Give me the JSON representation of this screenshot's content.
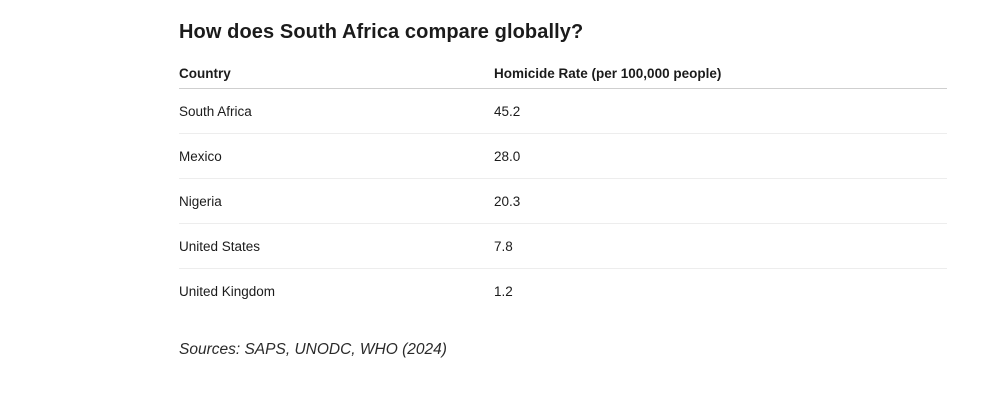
{
  "heading": "How does South Africa compare globally?",
  "table": {
    "headers": {
      "country": "Country",
      "rate": "Homicide Rate (per 100,000 people)"
    },
    "rows": [
      {
        "country": "South Africa",
        "rate": "45.2"
      },
      {
        "country": "Mexico",
        "rate": "28.0"
      },
      {
        "country": "Nigeria",
        "rate": "20.3"
      },
      {
        "country": "United States",
        "rate": "7.8"
      },
      {
        "country": "United Kingdom",
        "rate": "1.2"
      }
    ]
  },
  "sources": "Sources: SAPS, UNODC, WHO (2024)"
}
